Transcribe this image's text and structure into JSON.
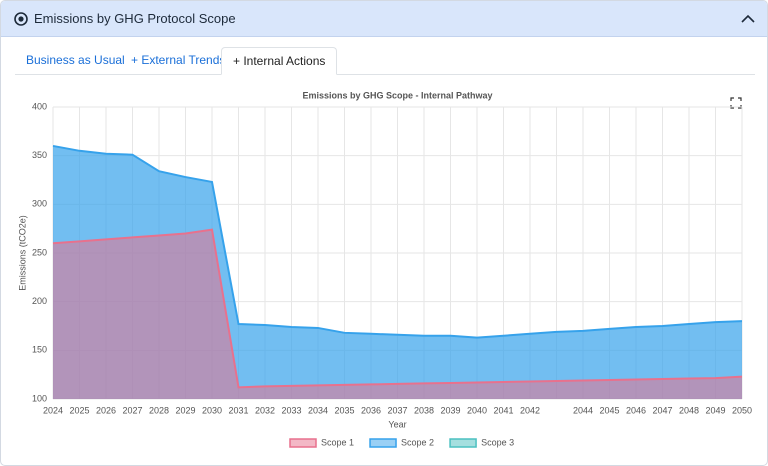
{
  "header": {
    "title": "Emissions by GHG Protocol Scope"
  },
  "tabs": [
    "Business as Usual",
    "+ External Trends",
    "+ Internal Actions"
  ],
  "chart_data": {
    "type": "area",
    "title": "Emissions by GHG Scope - Internal Pathway",
    "x_label": "Year",
    "y_label": "Emissions (tCO2e)",
    "categories": [
      "2024",
      "2025",
      "2026",
      "2027",
      "2028",
      "2029",
      "2030",
      "2031",
      "2032",
      "2033",
      "2034",
      "2035",
      "2036",
      "2037",
      "2038",
      "2039",
      "2040",
      "2041",
      "2042",
      null,
      "2044",
      "2045",
      "2046",
      "2047",
      "2048",
      "2049",
      "2050"
    ],
    "series": [
      {
        "name": "Scope 1",
        "color": "#e8718d",
        "values": [
          260,
          262,
          264,
          266,
          268,
          270,
          274,
          112,
          113,
          113.5,
          114,
          114.5,
          115,
          115.5,
          116,
          116.5,
          117,
          117.5,
          118,
          118.5,
          119,
          119.5,
          120,
          120.5,
          121,
          121.5,
          123
        ]
      },
      {
        "name": "Scope 2",
        "color": "#36a2eb",
        "values": [
          360,
          355,
          352,
          351,
          334,
          328,
          323,
          177,
          176,
          174,
          173,
          168,
          167,
          166,
          165,
          165,
          163,
          165,
          167,
          169,
          170,
          172,
          174,
          175,
          177,
          179,
          180
        ]
      },
      {
        "name": "Scope 3",
        "color": "#4bc0c0",
        "values": [
          null,
          null,
          null,
          null,
          null,
          null,
          null,
          null,
          null,
          null,
          null,
          null,
          null,
          null,
          null,
          null,
          null,
          null,
          null,
          null,
          null,
          null,
          null,
          null,
          null,
          null,
          null
        ]
      }
    ],
    "ylim": [
      100,
      400
    ],
    "yticks": [
      100,
      150,
      200,
      250,
      300,
      350,
      400
    ],
    "grid": true,
    "legend": "bottom"
  }
}
